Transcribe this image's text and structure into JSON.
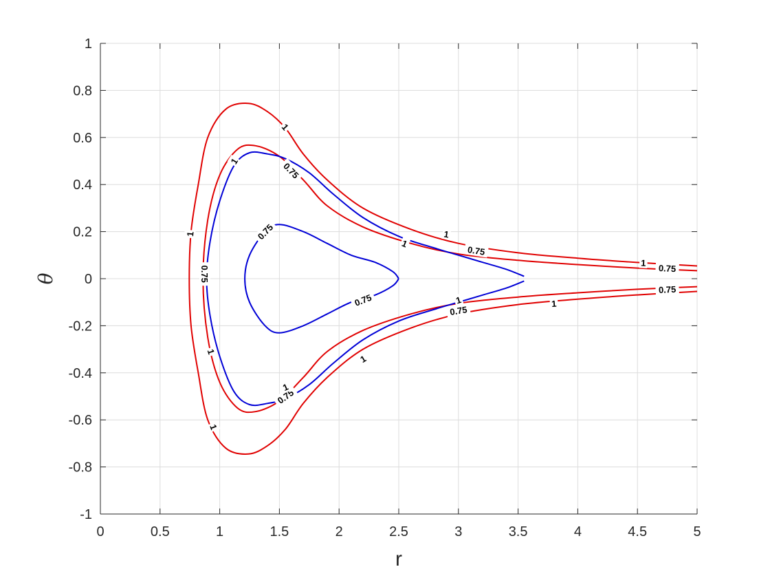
{
  "chart_data": {
    "type": "contour",
    "xlabel": "r",
    "ylabel": "θ",
    "xlim": [
      0,
      5
    ],
    "ylim": [
      -1,
      1
    ],
    "grid": true,
    "x_ticks": [
      "0",
      "0.5",
      "1",
      "1.5",
      "2",
      "2.5",
      "3",
      "3.5",
      "4",
      "4.5",
      "5"
    ],
    "y_ticks": [
      "1",
      "0.8",
      "0.6",
      "0.4",
      "0.2",
      "0",
      "-0.2",
      "-0.4",
      "-0.6",
      "-0.8",
      "-1"
    ],
    "colors": {
      "red": "#e00000",
      "blue": "#0000d6",
      "grid": "#dcdcdc",
      "axis": "#262626"
    },
    "contours": [
      {
        "color": "red",
        "points": [
          [
            5.0,
            0.054
          ],
          [
            4.5,
            0.069
          ],
          [
            4.0,
            0.087
          ],
          [
            3.5,
            0.11
          ],
          [
            3.0,
            0.15
          ],
          [
            2.6,
            0.21
          ],
          [
            2.2,
            0.3
          ],
          [
            1.9,
            0.42
          ],
          [
            1.7,
            0.53
          ],
          [
            1.55,
            0.64
          ],
          [
            1.4,
            0.71
          ],
          [
            1.24,
            0.745
          ],
          [
            1.05,
            0.72
          ],
          [
            0.9,
            0.6
          ],
          [
            0.82,
            0.4
          ],
          [
            0.76,
            0.2
          ],
          [
            0.745,
            0.0
          ],
          [
            0.76,
            -0.2
          ],
          [
            0.82,
            -0.4
          ],
          [
            0.9,
            -0.6
          ],
          [
            1.05,
            -0.72
          ],
          [
            1.24,
            -0.745
          ],
          [
            1.4,
            -0.71
          ],
          [
            1.55,
            -0.64
          ],
          [
            1.7,
            -0.53
          ],
          [
            1.9,
            -0.42
          ],
          [
            2.2,
            -0.3
          ],
          [
            2.6,
            -0.21
          ],
          [
            3.0,
            -0.15
          ],
          [
            3.5,
            -0.11
          ],
          [
            4.0,
            -0.087
          ],
          [
            4.5,
            -0.069
          ],
          [
            5.0,
            -0.054
          ]
        ],
        "labels": [
          {
            "text": "1",
            "x": 1.55,
            "y": 0.645
          },
          {
            "text": "1",
            "x": 0.75,
            "y": 0.19
          },
          {
            "text": "1",
            "x": 0.95,
            "y": -0.63
          },
          {
            "text": "1",
            "x": 2.2,
            "y": -0.34
          },
          {
            "text": "1",
            "x": 3.8,
            "y": -0.105
          }
        ]
      },
      {
        "color": "red",
        "points": [
          [
            5.0,
            0.034
          ],
          [
            4.5,
            0.045
          ],
          [
            4.0,
            0.06
          ],
          [
            3.5,
            0.078
          ],
          [
            3.0,
            0.105
          ],
          [
            2.6,
            0.15
          ],
          [
            2.2,
            0.22
          ],
          [
            1.9,
            0.31
          ],
          [
            1.7,
            0.42
          ],
          [
            1.5,
            0.52
          ],
          [
            1.3,
            0.565
          ],
          [
            1.15,
            0.55
          ],
          [
            1.0,
            0.44
          ],
          [
            0.9,
            0.25
          ],
          [
            0.86,
            0.0
          ],
          [
            0.9,
            -0.25
          ],
          [
            1.0,
            -0.44
          ],
          [
            1.15,
            -0.55
          ],
          [
            1.3,
            -0.565
          ],
          [
            1.5,
            -0.52
          ],
          [
            1.7,
            -0.42
          ],
          [
            1.9,
            -0.31
          ],
          [
            2.2,
            -0.22
          ],
          [
            2.6,
            -0.15
          ],
          [
            3.0,
            -0.105
          ],
          [
            3.5,
            -0.078
          ],
          [
            4.0,
            -0.06
          ],
          [
            4.5,
            -0.045
          ],
          [
            5.0,
            -0.034
          ]
        ],
        "labels": [
          {
            "text": "0.75",
            "x": 1.6,
            "y": 0.46
          },
          {
            "text": "0.75",
            "x": 3.15,
            "y": 0.12
          },
          {
            "text": "0.75",
            "x": 4.75,
            "y": 0.045
          },
          {
            "text": "0.75",
            "x": 4.75,
            "y": -0.045
          },
          {
            "text": "0.75",
            "x": 3.0,
            "y": -0.135
          },
          {
            "text": "0.75",
            "x": 1.55,
            "y": -0.5
          },
          {
            "text": "1",
            "x": 2.9,
            "y": 0.19
          },
          {
            "text": "1",
            "x": 4.55,
            "y": 0.068
          }
        ]
      },
      {
        "color": "blue",
        "points": [
          [
            3.55,
            0.01
          ],
          [
            3.4,
            0.04
          ],
          [
            3.2,
            0.07
          ],
          [
            3.0,
            0.1
          ],
          [
            2.8,
            0.13
          ],
          [
            2.5,
            0.18
          ],
          [
            2.2,
            0.26
          ],
          [
            1.95,
            0.36
          ],
          [
            1.75,
            0.45
          ],
          [
            1.55,
            0.51
          ],
          [
            1.4,
            0.53
          ],
          [
            1.25,
            0.535
          ],
          [
            1.12,
            0.48
          ],
          [
            1.0,
            0.33
          ],
          [
            0.92,
            0.16
          ],
          [
            0.89,
            0.0
          ],
          [
            0.92,
            -0.16
          ],
          [
            1.0,
            -0.33
          ],
          [
            1.12,
            -0.48
          ],
          [
            1.25,
            -0.535
          ],
          [
            1.4,
            -0.53
          ],
          [
            1.55,
            -0.51
          ],
          [
            1.75,
            -0.45
          ],
          [
            1.95,
            -0.36
          ],
          [
            2.2,
            -0.26
          ],
          [
            2.5,
            -0.18
          ],
          [
            2.8,
            -0.13
          ],
          [
            3.0,
            -0.1
          ],
          [
            3.2,
            -0.07
          ],
          [
            3.4,
            -0.04
          ],
          [
            3.55,
            -0.01
          ]
        ],
        "labels": [
          {
            "text": "1",
            "x": 1.12,
            "y": 0.5
          },
          {
            "text": "1",
            "x": 2.55,
            "y": 0.15
          },
          {
            "text": "0.75",
            "x": 0.875,
            "y": 0.02
          },
          {
            "text": "1",
            "x": 0.93,
            "y": -0.31
          },
          {
            "text": "1",
            "x": 1.55,
            "y": -0.46
          },
          {
            "text": "1",
            "x": 3.0,
            "y": -0.09
          }
        ]
      },
      {
        "color": "blue",
        "points": [
          [
            2.5,
            0.0
          ],
          [
            2.45,
            0.03
          ],
          [
            2.3,
            0.07
          ],
          [
            2.1,
            0.1
          ],
          [
            1.9,
            0.15
          ],
          [
            1.7,
            0.2
          ],
          [
            1.5,
            0.23
          ],
          [
            1.38,
            0.2
          ],
          [
            1.25,
            0.1
          ],
          [
            1.21,
            0.0
          ],
          [
            1.25,
            -0.1
          ],
          [
            1.38,
            -0.2
          ],
          [
            1.5,
            -0.23
          ],
          [
            1.7,
            -0.2
          ],
          [
            1.9,
            -0.15
          ],
          [
            2.1,
            -0.1
          ],
          [
            2.3,
            -0.07
          ],
          [
            2.45,
            -0.03
          ],
          [
            2.5,
            0.0
          ]
        ],
        "labels": [
          {
            "text": "0.75",
            "x": 1.38,
            "y": 0.2
          },
          {
            "text": "0.75",
            "x": 2.2,
            "y": -0.09
          }
        ]
      }
    ]
  }
}
